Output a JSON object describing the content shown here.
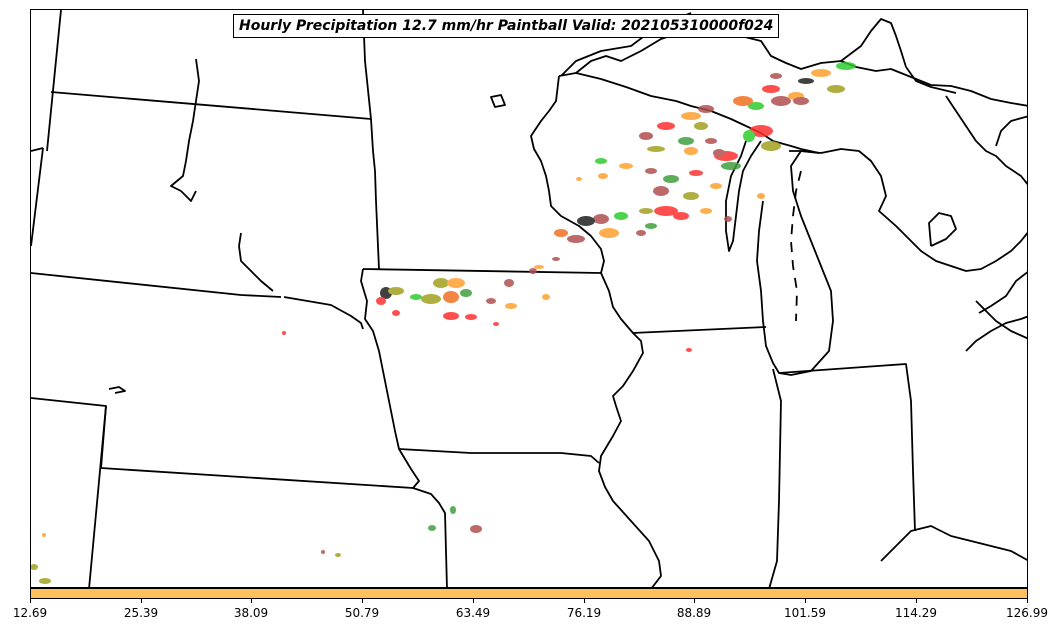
{
  "title": "Hourly Precipitation 12.7 mm/hr Paintball Valid: 202105310000f024",
  "colorbar": {
    "color": "#ffc060",
    "ticks": [
      "12.69",
      "25.39",
      "38.09",
      "50.79",
      "63.49",
      "76.19",
      "88.89",
      "101.59",
      "114.29",
      "126.99"
    ]
  },
  "map": {
    "region": "Upper Midwest / Great Lakes",
    "paintball_colors": [
      "#2ecc2e",
      "#ff3030",
      "#ffa030",
      "#b05050",
      "#202020",
      "#a0a020",
      "#f07020",
      "#40a040"
    ]
  }
}
